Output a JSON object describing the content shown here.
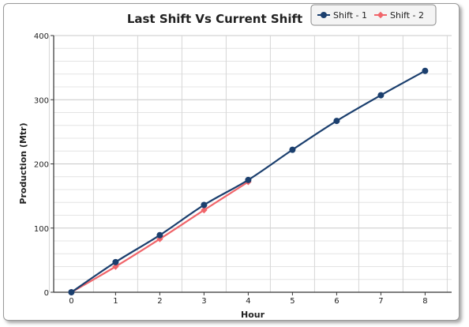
{
  "chart_data": {
    "type": "line",
    "title": "Last Shift Vs Current Shift",
    "xlabel": "Hour",
    "ylabel": "Production (Mtr)",
    "xlim": [
      -0.4,
      8.6
    ],
    "ylim": [
      0,
      400
    ],
    "x_ticks": [
      0,
      1,
      2,
      3,
      4,
      5,
      6,
      7,
      8
    ],
    "y_ticks": [
      0,
      100,
      200,
      300,
      400
    ],
    "grid": true,
    "legend_position": "top-right",
    "series": [
      {
        "name": "Shift - 1",
        "color": "#1b3f6e",
        "marker": "circle",
        "x": [
          0,
          1,
          2,
          3,
          4,
          5,
          6,
          7,
          8
        ],
        "y": [
          0,
          47,
          89,
          136,
          175,
          222,
          267,
          307,
          345
        ]
      },
      {
        "name": "Shift - 2",
        "color": "#f0656a",
        "marker": "diamond",
        "x": [
          0,
          1,
          2,
          3,
          4
        ],
        "y": [
          0,
          40,
          83,
          128,
          172
        ]
      }
    ]
  }
}
